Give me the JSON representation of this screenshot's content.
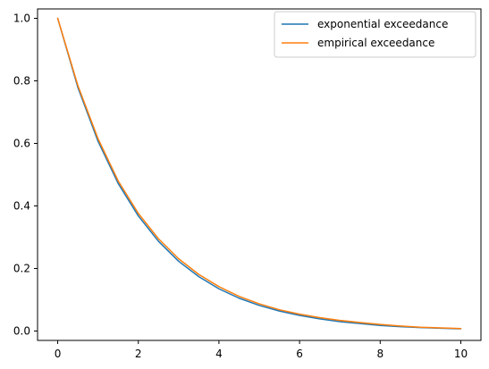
{
  "chart_data": {
    "type": "line",
    "title": "",
    "xlabel": "",
    "ylabel": "",
    "xlim": [
      -0.5,
      10.5
    ],
    "ylim": [
      -0.03,
      1.03
    ],
    "x_ticks": [
      0,
      2,
      4,
      6,
      8,
      10
    ],
    "x_tick_labels": [
      "0",
      "2",
      "4",
      "6",
      "8",
      "10"
    ],
    "y_ticks": [
      0.0,
      0.2,
      0.4,
      0.6,
      0.8,
      1.0
    ],
    "y_tick_labels": [
      "0.0",
      "0.2",
      "0.4",
      "0.6",
      "0.8",
      "1.0"
    ],
    "grid": false,
    "legend_position": "top-right",
    "x": [
      0,
      0.5,
      1,
      1.5,
      2,
      2.5,
      3,
      3.5,
      4,
      4.5,
      5,
      5.5,
      6,
      6.5,
      7,
      7.5,
      8,
      8.5,
      9,
      9.5,
      10
    ],
    "series": [
      {
        "name": "exponential exceedance",
        "color": "#1f77b4",
        "values": [
          1.0,
          0.779,
          0.607,
          0.472,
          0.368,
          0.287,
          0.223,
          0.174,
          0.135,
          0.105,
          0.082,
          0.064,
          0.05,
          0.039,
          0.03,
          0.024,
          0.018,
          0.014,
          0.011,
          0.009,
          0.007
        ]
      },
      {
        "name": "empirical exceedance",
        "color": "#ff7f0e",
        "values": [
          1.0,
          0.785,
          0.615,
          0.48,
          0.376,
          0.295,
          0.231,
          0.181,
          0.142,
          0.111,
          0.087,
          0.068,
          0.054,
          0.043,
          0.034,
          0.027,
          0.021,
          0.016,
          0.012,
          0.01,
          0.008
        ]
      }
    ]
  }
}
